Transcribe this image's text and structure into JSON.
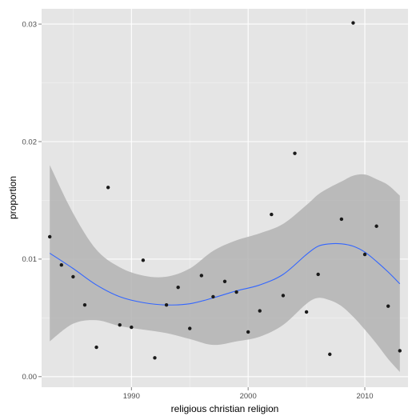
{
  "chart_data": {
    "type": "scatter",
    "title": "",
    "xlabel": "religious christian religion",
    "ylabel": "proportion",
    "xlim": [
      1982.3,
      2013.7
    ],
    "ylim": [
      -0.0009,
      0.0313
    ],
    "x_ticks": [
      1990,
      2000,
      2010
    ],
    "x_tick_labels": [
      "1990",
      "2000",
      "2010"
    ],
    "y_ticks": [
      0.0,
      0.01,
      0.02,
      0.03
    ],
    "y_tick_labels": [
      "0.00",
      "0.01",
      "0.02",
      "0.03"
    ],
    "grid": true,
    "legend": "none",
    "colors": {
      "panel_background": "#e5e5e5",
      "grid_major": "#ffffff",
      "grid_minor": "#f2f2f2",
      "points": "#1a1a1a",
      "smooth_line": "#3366ff",
      "confidence_band": "#b3b3b3"
    },
    "points": [
      {
        "x": 1983,
        "y": 0.0119
      },
      {
        "x": 1984,
        "y": 0.0095
      },
      {
        "x": 1985,
        "y": 0.0085
      },
      {
        "x": 1986,
        "y": 0.0061
      },
      {
        "x": 1987,
        "y": 0.0025
      },
      {
        "x": 1988,
        "y": 0.0161
      },
      {
        "x": 1989,
        "y": 0.0044
      },
      {
        "x": 1990,
        "y": 0.0042
      },
      {
        "x": 1991,
        "y": 0.0099
      },
      {
        "x": 1992,
        "y": 0.0016
      },
      {
        "x": 1993,
        "y": 0.0061
      },
      {
        "x": 1994,
        "y": 0.0076
      },
      {
        "x": 1995,
        "y": 0.0041
      },
      {
        "x": 1996,
        "y": 0.0086
      },
      {
        "x": 1997,
        "y": 0.0068
      },
      {
        "x": 1998,
        "y": 0.0081
      },
      {
        "x": 1999,
        "y": 0.0072
      },
      {
        "x": 2000,
        "y": 0.0038
      },
      {
        "x": 2001,
        "y": 0.0056
      },
      {
        "x": 2002,
        "y": 0.0138
      },
      {
        "x": 2003,
        "y": 0.0069
      },
      {
        "x": 2004,
        "y": 0.019
      },
      {
        "x": 2005,
        "y": 0.0055
      },
      {
        "x": 2006,
        "y": 0.0087
      },
      {
        "x": 2007,
        "y": 0.0019
      },
      {
        "x": 2008,
        "y": 0.0134
      },
      {
        "x": 2009,
        "y": 0.0301
      },
      {
        "x": 2010,
        "y": 0.0104
      },
      {
        "x": 2011,
        "y": 0.0128
      },
      {
        "x": 2012,
        "y": 0.006
      },
      {
        "x": 2013,
        "y": 0.0022
      }
    ],
    "smooth": {
      "x": [
        1983,
        1985,
        1987,
        1989,
        1991,
        1993,
        1995,
        1997,
        1999,
        2001,
        2003,
        2005,
        2006,
        2007,
        2008,
        2009,
        2010,
        2011,
        2012,
        2013
      ],
      "y": [
        0.0105,
        0.0092,
        0.0078,
        0.0068,
        0.0063,
        0.0061,
        0.0062,
        0.0067,
        0.0073,
        0.0078,
        0.0087,
        0.0104,
        0.0111,
        0.0113,
        0.0113,
        0.0111,
        0.0106,
        0.0098,
        0.0089,
        0.0079
      ],
      "ymin": [
        0.003,
        0.0045,
        0.0048,
        0.0043,
        0.004,
        0.0037,
        0.0032,
        0.0027,
        0.003,
        0.0034,
        0.0044,
        0.0062,
        0.0067,
        0.0065,
        0.006,
        0.0051,
        0.004,
        0.0028,
        0.0015,
        0.0004
      ],
      "ymax": [
        0.018,
        0.0139,
        0.0108,
        0.0093,
        0.0086,
        0.0085,
        0.0092,
        0.0107,
        0.0116,
        0.0122,
        0.013,
        0.0146,
        0.0155,
        0.0161,
        0.0166,
        0.0171,
        0.0172,
        0.0168,
        0.0163,
        0.0154
      ]
    }
  }
}
